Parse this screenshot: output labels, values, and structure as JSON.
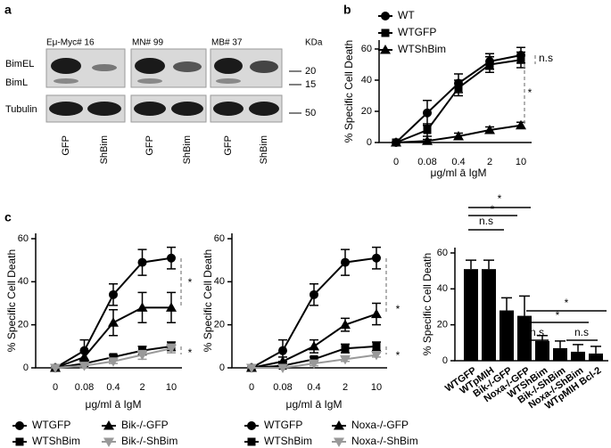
{
  "panel_labels": [
    "a",
    "b",
    "c"
  ],
  "blot": {
    "cell_lines": [
      "Eμ-Myc# 16",
      "MN# 99",
      "MB# 37"
    ],
    "kda_label": "KDa",
    "row_labels": [
      "BimEL",
      "BimL",
      "Tubulin"
    ],
    "markers": [
      20,
      15,
      50
    ],
    "lanes": [
      "GFP",
      "ShBim",
      "GFP",
      "ShBim",
      "GFP",
      "ShBim"
    ]
  },
  "chart_data": [
    {
      "type": "line",
      "ylabel": "% Specific Cell Death",
      "xlabel": "μg/ml ā IgM",
      "categories": [
        "0",
        "0.08",
        "0.4",
        "2",
        "10"
      ],
      "ylim": [
        0,
        60
      ],
      "yticks": [
        0,
        20,
        40,
        60
      ],
      "series": [
        {
          "name": "WT",
          "color": "#000000",
          "marker": "circle",
          "values": [
            0,
            19,
            38,
            52,
            56
          ],
          "errors": [
            0,
            8,
            6,
            5,
            5
          ]
        },
        {
          "name": "WTGFP",
          "color": "#000000",
          "marker": "square",
          "values": [
            0,
            8,
            35,
            50,
            53
          ],
          "errors": [
            0,
            4,
            5,
            5,
            5
          ]
        },
        {
          "name": "WTShBim",
          "color": "#000000",
          "marker": "triangle",
          "values": [
            0,
            1,
            4,
            8,
            11
          ],
          "errors": [
            0,
            1,
            2,
            2,
            2
          ]
        }
      ],
      "annotations": [
        "n.s",
        "*"
      ]
    },
    {
      "type": "line",
      "ylabel": "% Specific Cell Death",
      "xlabel": "μg/ml ā IgM",
      "categories": [
        "0",
        "0.08",
        "0.4",
        "2",
        "10"
      ],
      "ylim": [
        0,
        60
      ],
      "yticks": [
        0,
        20,
        40,
        60
      ],
      "series": [
        {
          "name": "WTGFP",
          "color": "#000000",
          "marker": "circle",
          "values": [
            0,
            8,
            34,
            49,
            51
          ],
          "errors": [
            0,
            5,
            5,
            6,
            5
          ]
        },
        {
          "name": "WTShBim",
          "color": "#000000",
          "marker": "square",
          "values": [
            0,
            2,
            5,
            8,
            10
          ],
          "errors": [
            0,
            1,
            1,
            2,
            2
          ]
        },
        {
          "name": "Bik-/-GFP",
          "color": "#000000",
          "marker": "triangle",
          "values": [
            0,
            5,
            21,
            28,
            28
          ],
          "errors": [
            0,
            3,
            6,
            7,
            7
          ]
        },
        {
          "name": "Bik-/-ShBim",
          "color": "#999999",
          "marker": "triangle-down",
          "values": [
            0,
            1,
            3,
            6,
            9
          ],
          "errors": [
            0,
            1,
            1,
            2,
            2
          ]
        }
      ],
      "annotations": [
        "*",
        "*"
      ]
    },
    {
      "type": "line",
      "ylabel": "% Specific Cell Death",
      "xlabel": "μg/ml ā IgM",
      "categories": [
        "0",
        "0.08",
        "0.4",
        "2",
        "10"
      ],
      "ylim": [
        0,
        60
      ],
      "yticks": [
        0,
        20,
        40,
        60
      ],
      "series": [
        {
          "name": "WTGFP",
          "color": "#000000",
          "marker": "circle",
          "values": [
            0,
            8,
            34,
            49,
            51
          ],
          "errors": [
            0,
            5,
            5,
            6,
            5
          ]
        },
        {
          "name": "WTShBim",
          "color": "#000000",
          "marker": "square",
          "values": [
            0,
            1,
            4,
            9,
            10
          ],
          "errors": [
            0,
            1,
            1,
            2,
            2
          ]
        },
        {
          "name": "Noxa-/-GFP",
          "color": "#000000",
          "marker": "triangle",
          "values": [
            0,
            3,
            10,
            20,
            25
          ],
          "errors": [
            0,
            2,
            3,
            3,
            5
          ]
        },
        {
          "name": "Noxa-/-ShBim",
          "color": "#999999",
          "marker": "triangle-down",
          "values": [
            0,
            0,
            2,
            4,
            6
          ],
          "errors": [
            0,
            0,
            1,
            1,
            1
          ]
        }
      ],
      "annotations": [
        "*",
        "*"
      ]
    },
    {
      "type": "bar",
      "ylabel": "% Specific Cell Death",
      "color": "#000000",
      "categories": [
        "WTGFP",
        "WTpMIH",
        "Bik-/-GFP",
        "Noxa-/-GFP",
        "WTShBim",
        "Bik-/-ShBim",
        "Noxa-/-ShBim",
        "WTpMIH Bcl-2"
      ],
      "values": [
        51,
        51,
        28,
        25,
        11,
        7,
        5,
        4
      ],
      "errors": [
        5,
        5,
        7,
        11,
        3,
        4,
        4,
        4
      ],
      "ylim": [
        0,
        60
      ],
      "yticks": [
        0,
        20,
        40,
        60
      ],
      "annotations": [
        "*",
        "n.s",
        "*",
        "*",
        "*",
        "n.s",
        "n.s"
      ]
    }
  ]
}
